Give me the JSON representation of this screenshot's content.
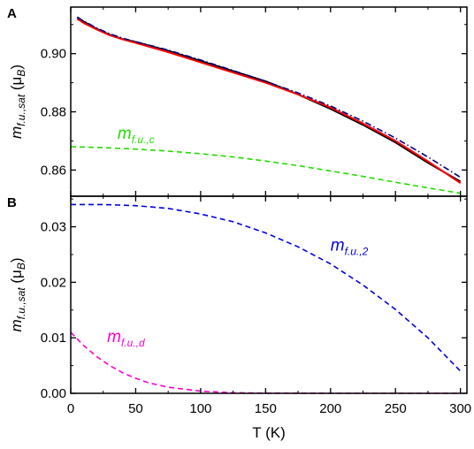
{
  "chart_data": [
    {
      "panel": "A",
      "type": "line",
      "xlim": [
        0,
        305
      ],
      "ylim": [
        0.851,
        0.916
      ],
      "xticks": [
        0,
        50,
        100,
        150,
        200,
        250,
        300
      ],
      "yticks": [
        0.86,
        0.88,
        0.9
      ],
      "ytick_labels": [
        "0.86",
        "0.88",
        "0.90"
      ],
      "ylabel": {
        "main": "m",
        "sub": "f.u.,sat",
        "unit": "(μ",
        "unit_sub": "B",
        "close": ")"
      },
      "grid": false,
      "series": [
        {
          "color": "#000000",
          "style": "solid",
          "x": [
            5,
            10,
            20,
            30,
            40,
            50,
            75,
            100,
            125,
            150,
            175,
            200,
            225,
            250,
            275,
            300
          ],
          "y": [
            0.9125,
            0.911,
            0.9085,
            0.9065,
            0.905,
            0.904,
            0.901,
            0.8975,
            0.894,
            0.8905,
            0.886,
            0.881,
            0.8755,
            0.8695,
            0.8625,
            0.856
          ]
        },
        {
          "color": "#ff0000",
          "style": "solid",
          "x": [
            5,
            10,
            20,
            30,
            40,
            50,
            75,
            100,
            125,
            150,
            175,
            200,
            225,
            250,
            275,
            300
          ],
          "y": [
            0.912,
            0.9105,
            0.9083,
            0.9063,
            0.9049,
            0.9037,
            0.9005,
            0.897,
            0.8935,
            0.89,
            0.886,
            0.8815,
            0.876,
            0.87,
            0.863,
            0.8555
          ]
        },
        {
          "color": "#000080",
          "style": "dashdot",
          "x": [
            5,
            10,
            20,
            30,
            40,
            50,
            75,
            100,
            125,
            150,
            175,
            200,
            225,
            250,
            275,
            300
          ],
          "y": [
            0.9125,
            0.9112,
            0.9088,
            0.9068,
            0.9053,
            0.9041,
            0.9012,
            0.8978,
            0.8942,
            0.8905,
            0.8865,
            0.882,
            0.8768,
            0.871,
            0.8645,
            0.8575
          ]
        },
        {
          "color": "#22dd00",
          "style": "dashed",
          "x": [
            0,
            25,
            50,
            75,
            100,
            125,
            150,
            175,
            200,
            225,
            250,
            275,
            300
          ],
          "y": [
            0.868,
            0.8677,
            0.8672,
            0.8665,
            0.8656,
            0.8645,
            0.8631,
            0.8615,
            0.8597,
            0.8578,
            0.8558,
            0.8539,
            0.852
          ]
        }
      ],
      "annotations": [
        {
          "text": "m",
          "sub": "f.u.,c",
          "color": "#22dd00",
          "x": 36,
          "y": 0.8708
        }
      ]
    },
    {
      "panel": "B",
      "type": "line",
      "xlim": [
        0,
        305
      ],
      "ylim": [
        0,
        0.0355
      ],
      "xticks": [
        0,
        50,
        100,
        150,
        200,
        250,
        300
      ],
      "yticks": [
        0.0,
        0.01,
        0.02,
        0.03
      ],
      "ytick_labels": [
        "0.00",
        "0.01",
        "0.02",
        "0.03"
      ],
      "xlabel": "T (K)",
      "ylabel": {
        "main": "m",
        "sub": "f.u.,sat",
        "unit": "(μ",
        "unit_sub": "B",
        "close": ")"
      },
      "grid": false,
      "series": [
        {
          "color": "#0000dd",
          "style": "dashed",
          "x": [
            0,
            25,
            50,
            75,
            100,
            125,
            150,
            175,
            200,
            225,
            250,
            275,
            300
          ],
          "y": [
            0.034,
            0.034,
            0.0338,
            0.0333,
            0.0323,
            0.0309,
            0.0289,
            0.0264,
            0.0233,
            0.0195,
            0.0151,
            0.01,
            0.004
          ]
        },
        {
          "color": "#ff00cc",
          "style": "dashed",
          "x": [
            0,
            10,
            20,
            30,
            40,
            50,
            60,
            75,
            100,
            125,
            150,
            200,
            300
          ],
          "y": [
            0.011,
            0.0086,
            0.0066,
            0.005,
            0.0037,
            0.0027,
            0.0019,
            0.0011,
            0.0004,
            0.0001,
            3e-05,
            0.0,
            0.0
          ]
        }
      ],
      "annotations": [
        {
          "text": "m",
          "sub": "f.u.,2",
          "color": "#0000dd",
          "x": 200,
          "y": 0.0257
        },
        {
          "text": "m",
          "sub": "f.u.,d",
          "color": "#ff00cc",
          "x": 28,
          "y": 0.0092
        }
      ]
    }
  ]
}
